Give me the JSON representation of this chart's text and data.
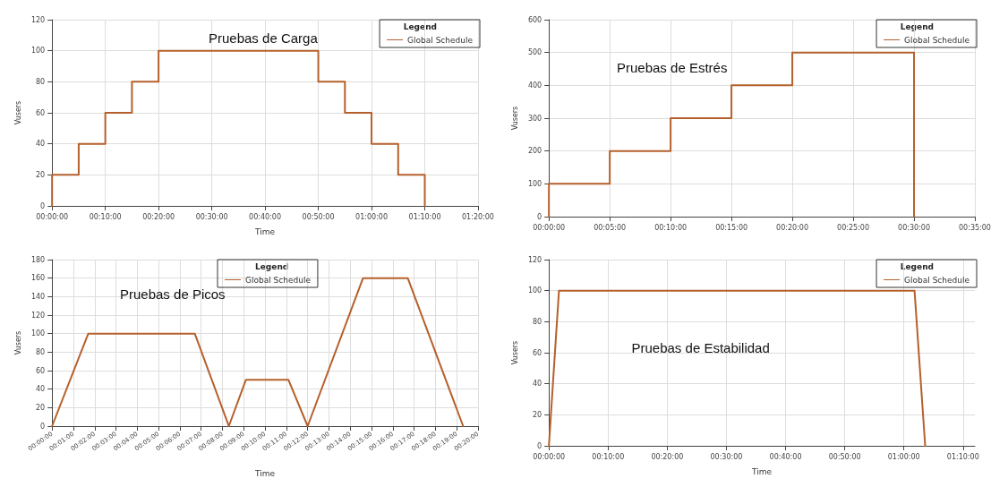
{
  "chart_data": [
    {
      "type": "line",
      "title": "Pruebas de Carga",
      "xlabel": "Time",
      "ylabel": "Vusers",
      "legend_title": "Legend",
      "legend": "top right",
      "grid": true,
      "marker": "none",
      "line_style": "solid",
      "xlim": [
        0,
        80
      ],
      "xticks": [
        {
          "value": 0,
          "label": "00:00:00"
        },
        {
          "value": 10,
          "label": "00:10:00"
        },
        {
          "value": 20,
          "label": "00:20:00"
        },
        {
          "value": 30,
          "label": "00:30:00"
        },
        {
          "value": 40,
          "label": "00:40:00"
        },
        {
          "value": 50,
          "label": "00:50:00"
        },
        {
          "value": 60,
          "label": "01:00:00"
        },
        {
          "value": 70,
          "label": "01:10:00"
        },
        {
          "value": 80,
          "label": "01:20:00"
        }
      ],
      "ylim": [
        0,
        120
      ],
      "yticks": [
        0,
        20,
        40,
        60,
        80,
        100,
        120
      ],
      "series": [
        {
          "name": "Global Schedule",
          "color": "#b5602c",
          "x": [
            0,
            0,
            5,
            5,
            10,
            10,
            15,
            15,
            20,
            20,
            50,
            50,
            55,
            55,
            60,
            60,
            65,
            65,
            70,
            70
          ],
          "values": [
            0,
            20,
            20,
            40,
            40,
            60,
            60,
            80,
            80,
            100,
            100,
            80,
            80,
            60,
            60,
            40,
            40,
            20,
            20,
            0
          ]
        }
      ]
    },
    {
      "type": "line",
      "title": "Pruebas de Estrés",
      "ylabel": "Vusers",
      "legend_title": "Legend",
      "legend": "top right",
      "grid": true,
      "marker": "none",
      "line_style": "solid",
      "xlim": [
        0,
        35
      ],
      "xticks": [
        {
          "value": 0,
          "label": "00:00:00"
        },
        {
          "value": 5,
          "label": "00:05:00"
        },
        {
          "value": 10,
          "label": "00:10:00"
        },
        {
          "value": 15,
          "label": "00:15:00"
        },
        {
          "value": 20,
          "label": "00:20:00"
        },
        {
          "value": 25,
          "label": "00:25:00"
        },
        {
          "value": 30,
          "label": "00:30:00"
        },
        {
          "value": 35,
          "label": "00:35:00"
        }
      ],
      "ylim": [
        0,
        600
      ],
      "yticks": [
        0,
        100,
        200,
        300,
        400,
        500,
        600
      ],
      "series": [
        {
          "name": "Global Schedule",
          "color": "#b5602c",
          "x": [
            0,
            0,
            5,
            5,
            10,
            10,
            15,
            15,
            20,
            20,
            30,
            30
          ],
          "values": [
            0,
            100,
            100,
            200,
            200,
            300,
            300,
            400,
            400,
            500,
            500,
            0
          ]
        }
      ]
    },
    {
      "type": "line",
      "title": "Pruebas de Picos",
      "xlabel": "Time",
      "ylabel": "Vusers",
      "legend_title": "Legend",
      "legend": "top",
      "grid": true,
      "marker": "none",
      "line_style": "solid",
      "xlim": [
        0,
        20
      ],
      "xticks": [
        {
          "value": 0,
          "label": "00:00:00"
        },
        {
          "value": 1,
          "label": "00:01:00"
        },
        {
          "value": 2,
          "label": "00:02:00"
        },
        {
          "value": 3,
          "label": "00:03:00"
        },
        {
          "value": 4,
          "label": "00:04:00"
        },
        {
          "value": 5,
          "label": "00:05:00"
        },
        {
          "value": 6,
          "label": "00:06:00"
        },
        {
          "value": 7,
          "label": "00:07:00"
        },
        {
          "value": 8,
          "label": "00:08:00"
        },
        {
          "value": 9,
          "label": "00:09:00"
        },
        {
          "value": 10,
          "label": "00:10:00"
        },
        {
          "value": 11,
          "label": "00:11:00"
        },
        {
          "value": 12,
          "label": "00:12:00"
        },
        {
          "value": 13,
          "label": "00:13:00"
        },
        {
          "value": 14,
          "label": "00:14:00"
        },
        {
          "value": 15,
          "label": "00:15:00"
        },
        {
          "value": 16,
          "label": "00:16:00"
        },
        {
          "value": 17,
          "label": "00:17:00"
        },
        {
          "value": 18,
          "label": "00:18:00"
        },
        {
          "value": 19,
          "label": "00:19:00"
        },
        {
          "value": 20,
          "label": "00:20:00"
        }
      ],
      "ylim": [
        0,
        180
      ],
      "yticks": [
        0,
        20,
        40,
        60,
        80,
        100,
        120,
        140,
        160,
        180
      ],
      "series": [
        {
          "name": "Global Schedule",
          "color": "#b5602c",
          "x": [
            0,
            1.7,
            6.7,
            8.3,
            9.1,
            11.1,
            12,
            14.6,
            16.7,
            19.3
          ],
          "values": [
            0,
            100,
            100,
            0,
            50,
            50,
            0,
            160,
            160,
            0
          ]
        }
      ]
    },
    {
      "type": "line",
      "title": "Pruebas de Estabilidad",
      "xlabel": "Time",
      "ylabel": "Vusers",
      "legend_title": "Legend",
      "legend": "top right",
      "grid": true,
      "marker": "none",
      "line_style": "solid",
      "xlim": [
        0,
        72
      ],
      "xticks": [
        {
          "value": 0,
          "label": "00:00:00"
        },
        {
          "value": 10,
          "label": "00:10:00"
        },
        {
          "value": 20,
          "label": "00:20:00"
        },
        {
          "value": 30,
          "label": "00:30:00"
        },
        {
          "value": 40,
          "label": "00:40:00"
        },
        {
          "value": 50,
          "label": "00:50:00"
        },
        {
          "value": 60,
          "label": "01:00:00"
        },
        {
          "value": 70,
          "label": "01:10:00"
        }
      ],
      "ylim": [
        0,
        120
      ],
      "yticks": [
        0,
        20,
        40,
        60,
        80,
        100,
        120
      ],
      "series": [
        {
          "name": "Global Schedule",
          "color": "#b5602c",
          "x": [
            0,
            1.7,
            61.8,
            63.6
          ],
          "values": [
            0,
            100,
            100,
            0
          ]
        }
      ]
    }
  ]
}
